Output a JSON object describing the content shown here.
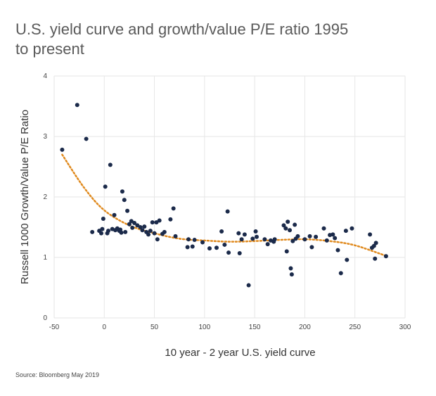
{
  "title_lines": [
    "U.S. yield curve and growth/value P/E ratio 1995",
    "to present"
  ],
  "source": "Source: Bloomberg May 2019",
  "colors": {
    "points": "#1b2a4a",
    "trendline": "#e08a1e",
    "grid": "#e6e6e6"
  },
  "chart_data": {
    "type": "scatter",
    "title": "U.S. yield curve and growth/value P/E ratio 1995 to present",
    "xlabel": "10 year - 2 year U.S. yield curve",
    "ylabel": "Russell 1000 Growth/Value P/E Ratio",
    "xlim": [
      -50,
      300
    ],
    "ylim": [
      0,
      4
    ],
    "xticks": [
      -50,
      0,
      50,
      100,
      150,
      200,
      250,
      300
    ],
    "yticks": [
      0,
      1,
      2,
      3,
      4
    ],
    "grid": true,
    "legend": "none",
    "trendline": {
      "style": "dotted",
      "type": "polynomial",
      "x": [
        -42,
        -20,
        0,
        25,
        50,
        75,
        100,
        125,
        150,
        175,
        200,
        225,
        250,
        282
      ],
      "y": [
        2.7,
        2.15,
        1.78,
        1.53,
        1.4,
        1.31,
        1.28,
        1.26,
        1.27,
        1.29,
        1.3,
        1.27,
        1.2,
        1.02
      ]
    },
    "points": [
      {
        "x": -42,
        "y": 2.78
      },
      {
        "x": -27,
        "y": 3.52
      },
      {
        "x": -18,
        "y": 2.96
      },
      {
        "x": -12,
        "y": 1.42
      },
      {
        "x": -5,
        "y": 1.44
      },
      {
        "x": -3,
        "y": 1.4
      },
      {
        "x": -2,
        "y": 1.47
      },
      {
        "x": -1,
        "y": 1.64
      },
      {
        "x": 1,
        "y": 2.17
      },
      {
        "x": 3,
        "y": 1.4
      },
      {
        "x": 4,
        "y": 1.44
      },
      {
        "x": 6,
        "y": 2.53
      },
      {
        "x": 8,
        "y": 1.47
      },
      {
        "x": 10,
        "y": 1.7
      },
      {
        "x": 11,
        "y": 1.45
      },
      {
        "x": 13,
        "y": 1.48
      },
      {
        "x": 15,
        "y": 1.44
      },
      {
        "x": 16,
        "y": 1.46
      },
      {
        "x": 17,
        "y": 1.41
      },
      {
        "x": 18,
        "y": 2.09
      },
      {
        "x": 20,
        "y": 1.95
      },
      {
        "x": 21,
        "y": 1.42
      },
      {
        "x": 23,
        "y": 1.77
      },
      {
        "x": 25,
        "y": 1.55
      },
      {
        "x": 27,
        "y": 1.6
      },
      {
        "x": 28,
        "y": 1.49
      },
      {
        "x": 30,
        "y": 1.57
      },
      {
        "x": 33,
        "y": 1.53
      },
      {
        "x": 36,
        "y": 1.5
      },
      {
        "x": 38,
        "y": 1.45
      },
      {
        "x": 40,
        "y": 1.51
      },
      {
        "x": 42,
        "y": 1.42
      },
      {
        "x": 44,
        "y": 1.38
      },
      {
        "x": 46,
        "y": 1.44
      },
      {
        "x": 48,
        "y": 1.58
      },
      {
        "x": 50,
        "y": 1.4
      },
      {
        "x": 52,
        "y": 1.58
      },
      {
        "x": 53,
        "y": 1.3
      },
      {
        "x": 55,
        "y": 1.61
      },
      {
        "x": 58,
        "y": 1.39
      },
      {
        "x": 60,
        "y": 1.42
      },
      {
        "x": 66,
        "y": 1.63
      },
      {
        "x": 69,
        "y": 1.81
      },
      {
        "x": 71,
        "y": 1.35
      },
      {
        "x": 83,
        "y": 1.17
      },
      {
        "x": 84,
        "y": 1.3
      },
      {
        "x": 88,
        "y": 1.18
      },
      {
        "x": 90,
        "y": 1.29
      },
      {
        "x": 98,
        "y": 1.25
      },
      {
        "x": 105,
        "y": 1.15
      },
      {
        "x": 112,
        "y": 1.16
      },
      {
        "x": 117,
        "y": 1.43
      },
      {
        "x": 120,
        "y": 1.21
      },
      {
        "x": 123,
        "y": 1.76
      },
      {
        "x": 124,
        "y": 1.08
      },
      {
        "x": 134,
        "y": 1.4
      },
      {
        "x": 135,
        "y": 1.07
      },
      {
        "x": 137,
        "y": 1.3
      },
      {
        "x": 140,
        "y": 1.38
      },
      {
        "x": 144,
        "y": 0.54
      },
      {
        "x": 148,
        "y": 1.31
      },
      {
        "x": 151,
        "y": 1.43
      },
      {
        "x": 152,
        "y": 1.34
      },
      {
        "x": 160,
        "y": 1.3
      },
      {
        "x": 163,
        "y": 1.22
      },
      {
        "x": 166,
        "y": 1.28
      },
      {
        "x": 169,
        "y": 1.26
      },
      {
        "x": 170,
        "y": 1.3
      },
      {
        "x": 179,
        "y": 1.53
      },
      {
        "x": 181,
        "y": 1.48
      },
      {
        "x": 182,
        "y": 1.1
      },
      {
        "x": 183,
        "y": 1.59
      },
      {
        "x": 185,
        "y": 1.45
      },
      {
        "x": 186,
        "y": 0.82
      },
      {
        "x": 187,
        "y": 0.72
      },
      {
        "x": 188,
        "y": 1.27
      },
      {
        "x": 190,
        "y": 1.54
      },
      {
        "x": 191,
        "y": 1.31
      },
      {
        "x": 193,
        "y": 1.35
      },
      {
        "x": 200,
        "y": 1.3
      },
      {
        "x": 205,
        "y": 1.35
      },
      {
        "x": 207,
        "y": 1.17
      },
      {
        "x": 211,
        "y": 1.34
      },
      {
        "x": 219,
        "y": 1.48
      },
      {
        "x": 222,
        "y": 1.28
      },
      {
        "x": 225,
        "y": 1.37
      },
      {
        "x": 228,
        "y": 1.38
      },
      {
        "x": 230,
        "y": 1.32
      },
      {
        "x": 233,
        "y": 1.12
      },
      {
        "x": 236,
        "y": 0.74
      },
      {
        "x": 241,
        "y": 1.44
      },
      {
        "x": 242,
        "y": 0.96
      },
      {
        "x": 247,
        "y": 1.48
      },
      {
        "x": 265,
        "y": 1.38
      },
      {
        "x": 267,
        "y": 1.16
      },
      {
        "x": 269,
        "y": 1.19
      },
      {
        "x": 270,
        "y": 0.98
      },
      {
        "x": 271,
        "y": 1.24
      },
      {
        "x": 281,
        "y": 1.02
      }
    ]
  }
}
